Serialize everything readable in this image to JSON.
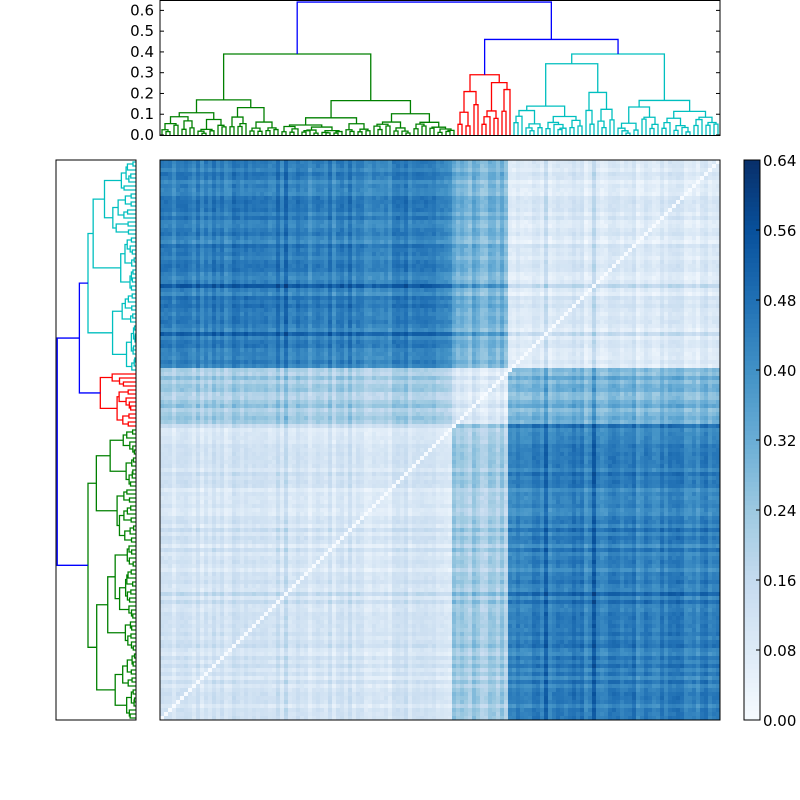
{
  "chart_data": {
    "type": "heatmap",
    "title": "",
    "description": "Clustered distance matrix heatmap with row/column dendrograms and colorbar",
    "colormap": "Blues",
    "colorbar": {
      "vmin": 0.0,
      "vmax": 0.64,
      "ticks": [
        "0.00",
        "0.08",
        "0.16",
        "0.24",
        "0.32",
        "0.40",
        "0.48",
        "0.56",
        "0.64"
      ]
    },
    "top_dendrogram": {
      "ylim": [
        0.0,
        0.65
      ],
      "yticks": [
        "0.0",
        "0.1",
        "0.2",
        "0.3",
        "0.4",
        "0.5",
        "0.6"
      ],
      "root_height": 0.64,
      "clusters": [
        {
          "name": "green",
          "color": "#008000",
          "leaf_fraction": [
            0.0,
            0.525
          ],
          "merge_height": 0.39
        },
        {
          "name": "red",
          "color": "#ff0000",
          "leaf_fraction": [
            0.525,
            0.625
          ],
          "merge_height": 0.29
        },
        {
          "name": "cyan",
          "color": "#00bfbf",
          "leaf_fraction": [
            0.625,
            1.0
          ],
          "merge_height": 0.39
        }
      ],
      "link_color_above_threshold": "#0000ff",
      "top_links": [
        {
          "left_x": 0.09,
          "right_x": 0.67,
          "height": 0.64
        },
        {
          "left_x": 0.555,
          "right_x": 0.785,
          "height": 0.46
        }
      ]
    },
    "left_dendrogram": {
      "orientation": "left",
      "order_top_to_bottom": [
        "cyan",
        "red",
        "green"
      ],
      "clusters": [
        {
          "name": "cyan",
          "color": "#00bfbf",
          "leaf_fraction": [
            0.0,
            0.375
          ]
        },
        {
          "name": "red",
          "color": "#ff0000",
          "leaf_fraction": [
            0.375,
            0.475
          ]
        },
        {
          "name": "green",
          "color": "#008000",
          "leaf_fraction": [
            0.475,
            1.0
          ]
        }
      ]
    },
    "heatmap": {
      "n": 140,
      "column_blocks": [
        {
          "cluster": "green",
          "from": 0.0,
          "to": 0.525
        },
        {
          "cluster": "red",
          "from": 0.525,
          "to": 0.625
        },
        {
          "cluster": "cyan",
          "from": 0.625,
          "to": 1.0
        }
      ],
      "row_blocks": [
        {
          "cluster": "cyan",
          "from": 0.0,
          "to": 0.375
        },
        {
          "cluster": "red",
          "from": 0.375,
          "to": 0.475
        },
        {
          "cluster": "green",
          "from": 0.475,
          "to": 1.0
        }
      ],
      "block_mean_distance": {
        "green-green": 0.12,
        "green-red": 0.22,
        "green-cyan": 0.44,
        "red-red": 0.1,
        "red-cyan": 0.3,
        "cyan-cyan": 0.1
      },
      "diagonal": "anti-diagonal (bottom-left to top-right), value 0.0"
    }
  }
}
